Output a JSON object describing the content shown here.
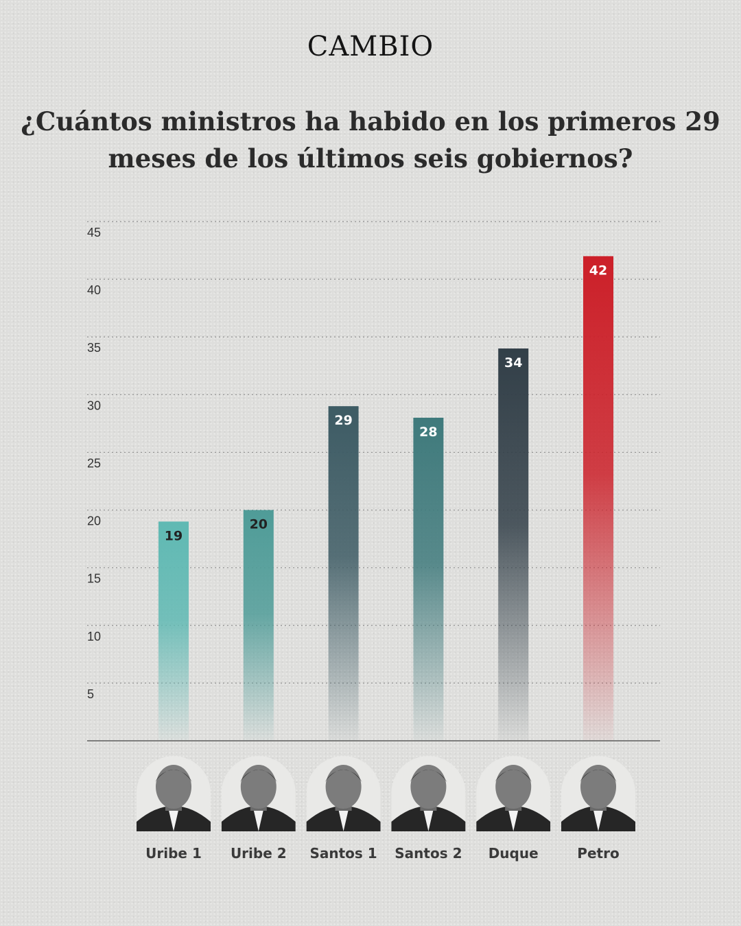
{
  "brand": "CAMBIO",
  "title": "¿Cuántos ministros ha habido en los primeros 29 meses de los últimos seis gobiernos?",
  "chart_data": {
    "type": "bar",
    "categories": [
      "Uribe 1",
      "Uribe 2",
      "Santos 1",
      "Santos 2",
      "Duque",
      "Petro"
    ],
    "values": [
      19,
      20,
      29,
      28,
      34,
      42
    ],
    "ylim": [
      0,
      45
    ],
    "yticks": [
      5,
      10,
      15,
      20,
      25,
      30,
      35,
      40,
      45
    ],
    "grid": true,
    "bar_colors": [
      "#5fb9b3",
      "#4f9c98",
      "#3d5b64",
      "#3f7a7c",
      "#323f48",
      "#cc2029"
    ],
    "label_colors": [
      "#222222",
      "#222222",
      "#ffffff",
      "#ffffff",
      "#ffffff",
      "#ffffff"
    ]
  },
  "portraits": [
    {
      "name": "Uribe 1",
      "icon": "portrait-icon"
    },
    {
      "name": "Uribe 2",
      "icon": "portrait-icon"
    },
    {
      "name": "Santos 1",
      "icon": "portrait-icon"
    },
    {
      "name": "Santos 2",
      "icon": "portrait-icon"
    },
    {
      "name": "Duque",
      "icon": "portrait-icon"
    },
    {
      "name": "Petro",
      "icon": "portrait-icon"
    }
  ]
}
